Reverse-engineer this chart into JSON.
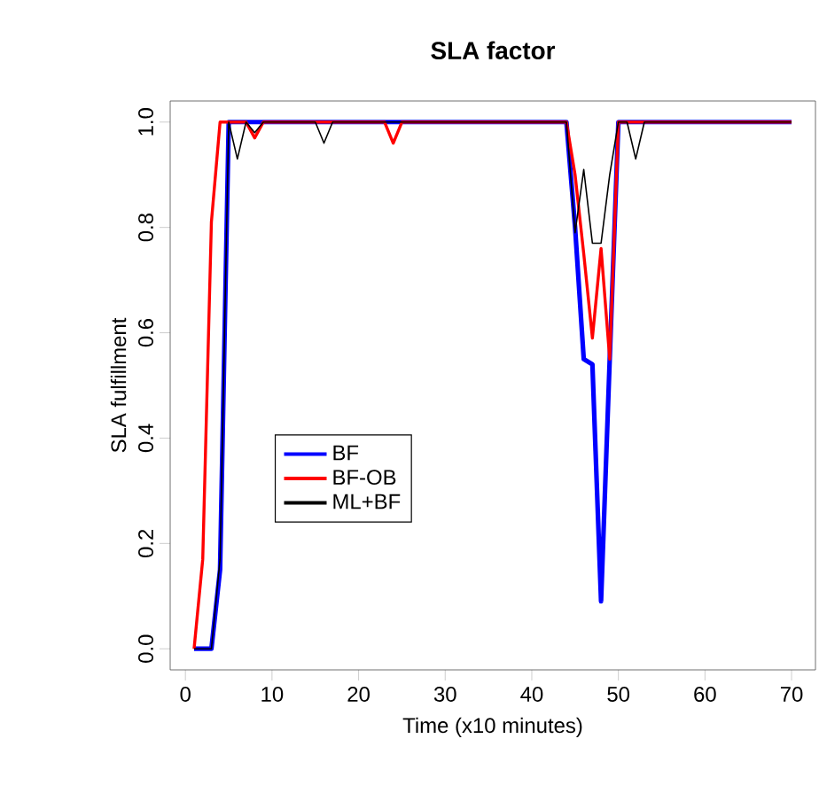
{
  "chart_data": {
    "type": "line",
    "title": "SLA factor",
    "xlabel": "Time (x10 minutes)",
    "ylabel": "SLA fulfillment",
    "x": [
      1,
      2,
      3,
      4,
      5,
      6,
      7,
      8,
      9,
      10,
      11,
      12,
      13,
      14,
      15,
      16,
      17,
      18,
      19,
      20,
      21,
      22,
      23,
      24,
      25,
      26,
      27,
      28,
      29,
      30,
      31,
      32,
      33,
      34,
      35,
      36,
      37,
      38,
      39,
      40,
      41,
      42,
      43,
      44,
      45,
      46,
      47,
      48,
      49,
      50,
      51,
      52,
      53,
      54,
      55,
      56,
      57,
      58,
      59,
      60,
      61,
      62,
      63,
      64,
      65,
      66,
      67,
      68,
      69,
      70
    ],
    "series": [
      {
        "name": "BF",
        "color": "#0000ff",
        "values": [
          0,
          0,
          0,
          0.15,
          1,
          1,
          1,
          1,
          1,
          1,
          1,
          1,
          1,
          1,
          1,
          1,
          1,
          1,
          1,
          1,
          1,
          1,
          1,
          1,
          1,
          1,
          1,
          1,
          1,
          1,
          1,
          1,
          1,
          1,
          1,
          1,
          1,
          1,
          1,
          1,
          1,
          1,
          1,
          1,
          0.8,
          0.55,
          0.54,
          0.09,
          0.55,
          1,
          1,
          1,
          1,
          1,
          1,
          1,
          1,
          1,
          1,
          1,
          1,
          1,
          1,
          1,
          1,
          1,
          1,
          1,
          1,
          1
        ]
      },
      {
        "name": "BF-OB",
        "color": "#ff0000",
        "values": [
          0,
          0.17,
          0.81,
          1,
          1,
          1,
          1,
          0.97,
          1,
          1,
          1,
          1,
          1,
          1,
          1,
          1,
          1,
          1,
          1,
          1,
          1,
          1,
          1,
          0.96,
          1,
          1,
          1,
          1,
          1,
          1,
          1,
          1,
          1,
          1,
          1,
          1,
          1,
          1,
          1,
          1,
          1,
          1,
          1,
          1,
          0.9,
          0.75,
          0.59,
          0.76,
          0.55,
          1,
          1,
          1,
          1,
          1,
          1,
          1,
          1,
          1,
          1,
          1,
          1,
          1,
          1,
          1,
          1,
          1,
          1,
          1,
          1,
          1
        ]
      },
      {
        "name": "ML+BF",
        "color": "#000000",
        "values": [
          0,
          0,
          0,
          0.17,
          1,
          0.93,
          1,
          0.98,
          1,
          1,
          1,
          1,
          1,
          1,
          1,
          0.96,
          1,
          1,
          1,
          1,
          1,
          1,
          1,
          1,
          1,
          1,
          1,
          1,
          1,
          1,
          1,
          1,
          1,
          1,
          1,
          1,
          1,
          1,
          1,
          1,
          1,
          1,
          1,
          1,
          0.79,
          0.91,
          0.77,
          0.77,
          0.9,
          1,
          1,
          0.93,
          1,
          1,
          1,
          1,
          1,
          1,
          1,
          1,
          1,
          1,
          1,
          1,
          1,
          1,
          1,
          1,
          1,
          1
        ]
      }
    ],
    "xlim": [
      -1.76,
      72.76
    ],
    "ylim": [
      -0.04,
      1.04
    ],
    "xticks": [
      0,
      10,
      20,
      30,
      40,
      50,
      60,
      70
    ],
    "yticks": [
      {
        "value": 0,
        "label": "0.0"
      },
      {
        "value": 0.2,
        "label": "0.2"
      },
      {
        "value": 0.4,
        "label": "0.4"
      },
      {
        "value": 0.6,
        "label": "0.6"
      },
      {
        "value": 0.8,
        "label": "0.8"
      },
      {
        "value": 1,
        "label": "1.0"
      }
    ],
    "legend": "bottom left",
    "grid": false
  }
}
